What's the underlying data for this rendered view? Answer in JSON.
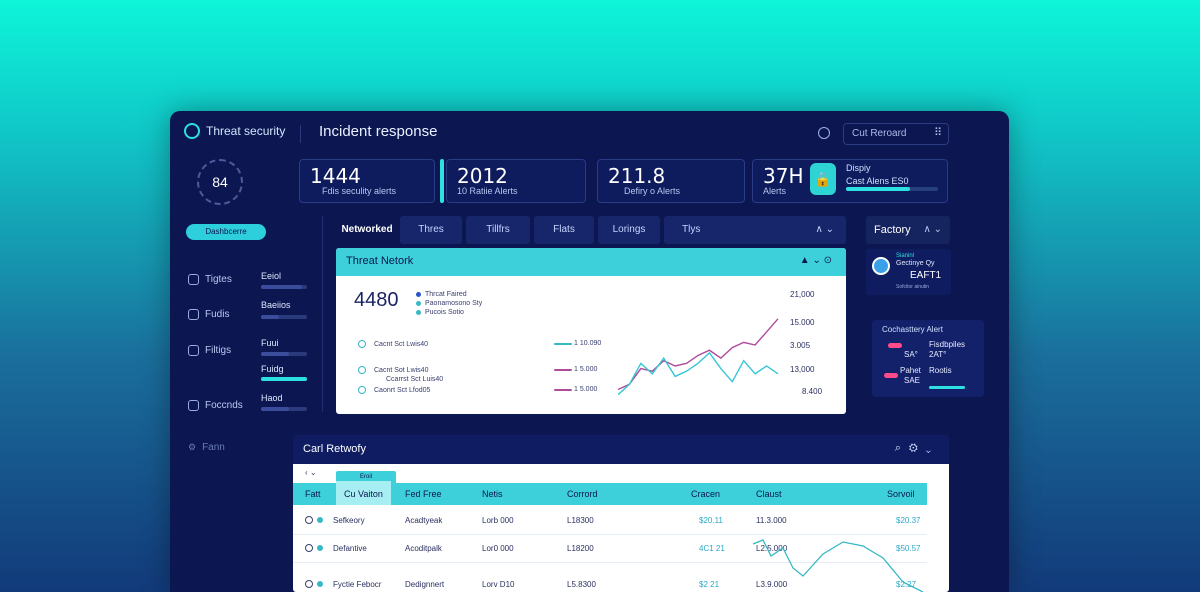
{
  "header": {
    "brand": "Threat security",
    "title": "Incident response",
    "search_placeholder": "Cut Reroard",
    "grid_icon": "grid-icon"
  },
  "gauge": {
    "value": "84"
  },
  "stats": [
    {
      "value": "1444",
      "label": "Fdis seculity alerts"
    },
    {
      "value": "2012",
      "label": "10 Ratiie Alerts"
    },
    {
      "value": "211.8",
      "label": "Defiry o Alerts"
    },
    {
      "value": "37H",
      "label": "Alerts",
      "side_title": "Dispiy",
      "side_value": "Cast Alens ES0"
    }
  ],
  "sidebar": {
    "dashboard_label": "Dashbcerre",
    "items": [
      {
        "label": "Tigtes",
        "value": "Eeiol",
        "level": 0.9
      },
      {
        "label": "Fudis",
        "value": "Baeiios",
        "level": 0.4
      },
      {
        "label": "Filtigs",
        "value": "Fuui",
        "level": 0.6
      },
      {
        "label": "",
        "value": "Fuidg",
        "level": 1.0
      },
      {
        "label": "Foccnds",
        "value": "Haod",
        "level": 0.6
      },
      {
        "label": "Fann",
        "value": "",
        "level": 0
      }
    ]
  },
  "tabs": [
    {
      "label": "Networked"
    },
    {
      "label": "Thres"
    },
    {
      "label": "Tillfrs"
    },
    {
      "label": "Flats"
    },
    {
      "label": "Lorings"
    },
    {
      "label": "Tlys"
    }
  ],
  "threat_network": {
    "title": "Threat Netork",
    "big_value": "4480",
    "legend": [
      {
        "text": "Thrcat Faired",
        "color": "#2a55c8"
      },
      {
        "text": "Paonamosono Sty",
        "color": "#36b8c6"
      },
      {
        "text": "Pucois Sotio",
        "color": "#36b8c6"
      }
    ],
    "rows": [
      {
        "text": "Cacnt Sct Lwis40",
        "value": "1 10.090",
        "color": "#36b8c6"
      },
      {
        "text": "Cacnt Sot Lwis40",
        "value": "1 5.000",
        "color": "#b04b9c"
      },
      {
        "text": "Caonrt Sct Lfod05",
        "value": "1 5.000",
        "color": "#b04b9c"
      }
    ],
    "sub_row": "Ccarrst Sct Luis40",
    "axis": [
      "21,000",
      "15.000",
      "3.005",
      "13,000",
      "8.400"
    ]
  },
  "chart_data": {
    "type": "line",
    "title": "Threat Netork",
    "x": [
      1,
      2,
      3,
      4,
      5,
      6,
      7,
      8,
      9,
      10,
      11,
      12,
      13,
      14,
      15
    ],
    "ylim": [
      0,
      21000
    ],
    "series": [
      {
        "values": [
          2000,
          3000,
          6000,
          5500,
          7500,
          6500,
          7000,
          8500,
          9500,
          8000,
          10000,
          11000,
          10500,
          13000,
          15500
        ],
        "color": "#b04b9c"
      },
      {
        "values": [
          1000,
          3000,
          7000,
          5000,
          8000,
          4500,
          5500,
          7000,
          9000,
          6000,
          3500,
          7500,
          5000,
          6500,
          5000
        ],
        "color": "#36c6d4"
      }
    ]
  },
  "factory": {
    "tab_label": "Factory",
    "line1": "Sianinl",
    "line2": "Gectinye Qy",
    "value": "EAFT1",
    "caption": "Sofcitor ainutin"
  },
  "alert_card": {
    "title": "Cochasttery Alert",
    "rows": [
      {
        "left": "SA°",
        "right": "2AT°",
        "right_top": "Fisdbpiles"
      },
      {
        "left": "SAE",
        "right": "Rootis",
        "left_top": "Pahet"
      }
    ]
  },
  "network_table": {
    "title": "Carl Retwofy",
    "chip_label": "Eroil",
    "headers": [
      "Fatt",
      "Cu Vaiton",
      "Fed Free",
      "Netis",
      "Corrord",
      "Cracen",
      "Claust",
      "Sorvoil"
    ],
    "rows": [
      [
        "Sefkeory",
        "Acadtyeak",
        "Lorb 000",
        "L18300",
        "$20.11",
        "11.3.000",
        "$20.37"
      ],
      [
        "Defantive",
        "Acoditpalk",
        "Lor0 000",
        "L18200",
        "4C1 21",
        "L2.5.000",
        "$50.57"
      ],
      [
        "Fyctie Febocr",
        "Dedignnert",
        "Lorv D10",
        "L5.8300",
        "$2 21",
        "L3.9.000",
        "$2.27"
      ]
    ]
  },
  "colors": {
    "accent": "#2ee0e0",
    "panel": "#0c1650",
    "magenta": "#b04b9c",
    "pink": "#ff4b8a"
  }
}
